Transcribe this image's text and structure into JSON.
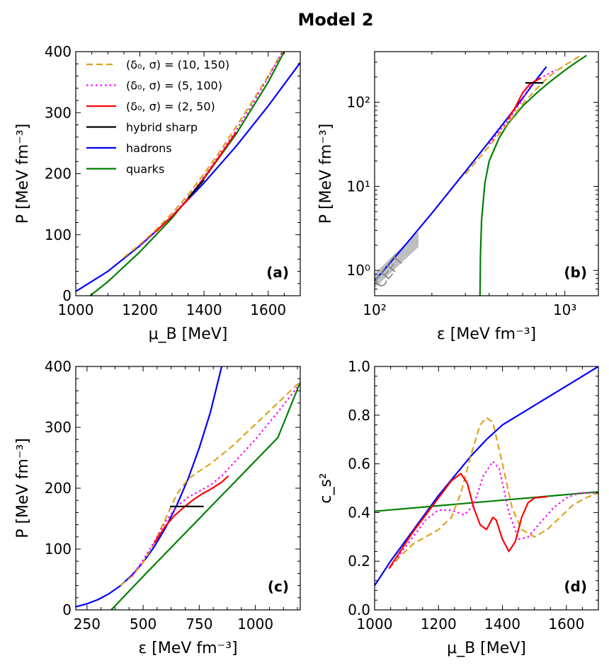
{
  "title": "Model 2",
  "colors": {
    "d10": "#DAA520",
    "d5": "#FF00FF",
    "d2": "#FF0000",
    "hybrid": "#000000",
    "hadrons": "#0000FF",
    "quarks": "#008000",
    "cetf": "#BFBFBF"
  },
  "legend": [
    {
      "key": "d10",
      "label": "(δ₀, σ) = (10, 150)",
      "style": "dashed"
    },
    {
      "key": "d5",
      "label": "(δ₀, σ) = (5, 100)",
      "style": "dotted"
    },
    {
      "key": "d2",
      "label": "(δ₀, σ) = (2, 50)",
      "style": "solid"
    },
    {
      "key": "hybrid",
      "label": "hybrid sharp",
      "style": "solid"
    },
    {
      "key": "hadrons",
      "label": "hadrons",
      "style": "solid"
    },
    {
      "key": "quarks",
      "label": "quarks",
      "style": "solid"
    }
  ],
  "chart_data": [
    {
      "id": "a",
      "type": "line",
      "tag": "(a)",
      "xlabel": "μ_B [MeV]",
      "ylabel": "P [MeV fm⁻³]",
      "xlim": [
        1000,
        1700
      ],
      "ylim": [
        0,
        400
      ],
      "xticks": [
        1000,
        1200,
        1400,
        1600
      ],
      "yticks": [
        0,
        100,
        200,
        300,
        400
      ],
      "series": [
        {
          "name": "hadrons",
          "key": "hadrons",
          "x": [
            1000,
            1100,
            1200,
            1300,
            1400,
            1500,
            1600,
            1700
          ],
          "y": [
            7,
            40,
            82,
            130,
            185,
            245,
            311,
            382
          ]
        },
        {
          "name": "quarks",
          "key": "quarks",
          "x": [
            1045,
            1100,
            1200,
            1300,
            1400,
            1500,
            1600,
            1660
          ],
          "y": [
            0,
            23,
            72,
            127,
            192,
            265,
            350,
            410
          ]
        },
        {
          "name": "(10,150)",
          "key": "d10",
          "x": [
            1150,
            1200,
            1250,
            1300,
            1350,
            1400,
            1450,
            1500,
            1550,
            1600,
            1650
          ],
          "y": [
            63,
            84,
            108,
            135,
            165,
            200,
            237,
            277,
            318,
            360,
            405
          ]
        },
        {
          "name": "(5,100)",
          "key": "d5",
          "x": [
            1200,
            1250,
            1300,
            1350,
            1400,
            1450,
            1500,
            1550,
            1600,
            1650
          ],
          "y": [
            82,
            105,
            131,
            160,
            195,
            232,
            271,
            313,
            358,
            405
          ]
        },
        {
          "name": "(2,50)",
          "key": "d2",
          "x": [
            1250,
            1300,
            1350,
            1400,
            1450,
            1500
          ],
          "y": [
            105,
            130,
            158,
            193,
            230,
            268
          ]
        },
        {
          "name": "hybrid",
          "key": "hybrid",
          "x": [
            1350,
            1400
          ],
          "y": [
            160,
            190
          ]
        }
      ]
    },
    {
      "id": "b",
      "type": "line",
      "tag": "(b)",
      "xscale": "log",
      "yscale": "log",
      "xlabel": "ε [MeV fm⁻³]",
      "ylabel": "P [MeV fm⁻³]",
      "xlim": [
        100,
        1500
      ],
      "ylim": [
        0.5,
        400
      ],
      "xticks": [
        100,
        1000
      ],
      "xticklabels": [
        "10²",
        "10³"
      ],
      "yticks": [
        1,
        10,
        100
      ],
      "yticklabels": [
        "10⁰",
        "10¹",
        "10²"
      ],
      "annotation": "CEFT",
      "ceft_band": {
        "x": [
          100,
          170
        ],
        "lower": [
          0.62,
          1.9
        ],
        "upper": [
          0.92,
          2.9
        ]
      },
      "series": [
        {
          "name": "hadrons",
          "key": "hadrons",
          "x": [
            100,
            150,
            200,
            300,
            400,
            500,
            600,
            700,
            800
          ],
          "y": [
            0.75,
            2.2,
            4.8,
            15,
            34,
            65,
            112,
            180,
            265
          ]
        },
        {
          "name": "quarks",
          "key": "quarks",
          "x": [
            358,
            360,
            365,
            380,
            400,
            450,
            500,
            600,
            700,
            800,
            900,
            1000,
            1100,
            1200,
            1300
          ],
          "y": [
            0.5,
            1.5,
            4,
            11,
            20,
            37,
            55,
            90,
            125,
            162,
            200,
            240,
            280,
            320,
            360
          ]
        },
        {
          "name": "(10,150)",
          "key": "d10",
          "x": [
            300,
            400,
            500,
            600,
            700,
            800,
            900,
            1000,
            1100,
            1200
          ],
          "y": [
            14,
            30,
            56,
            95,
            140,
            190,
            235,
            275,
            315,
            355
          ]
        },
        {
          "name": "(5,100)",
          "key": "d5",
          "x": [
            400,
            500,
            600,
            650,
            700,
            800,
            900
          ],
          "y": [
            32,
            60,
            108,
            150,
            178,
            212,
            245
          ]
        },
        {
          "name": "(2,50)",
          "key": "d2",
          "x": [
            500,
            550,
            600,
            650,
            700,
            750
          ],
          "y": [
            62,
            88,
            130,
            162,
            180,
            195
          ]
        },
        {
          "name": "hybrid",
          "key": "hybrid",
          "x": [
            620,
            770
          ],
          "y": [
            170,
            170
          ]
        }
      ]
    },
    {
      "id": "c",
      "type": "line",
      "tag": "(c)",
      "xlabel": "ε [MeV fm⁻³]",
      "ylabel": "P [MeV fm⁻³]",
      "xlim": [
        200,
        1200
      ],
      "ylim": [
        0,
        400
      ],
      "xticks": [
        250,
        500,
        750,
        1000
      ],
      "yticks": [
        0,
        100,
        200,
        300,
        400
      ],
      "series": [
        {
          "name": "hadrons",
          "key": "hadrons",
          "x": [
            200,
            250,
            300,
            350,
            400,
            450,
            500,
            550,
            600,
            650,
            700,
            750,
            800,
            850
          ],
          "y": [
            5,
            10,
            17,
            27,
            40,
            57,
            78,
            104,
            135,
            172,
            215,
            266,
            325,
            400
          ]
        },
        {
          "name": "quarks",
          "key": "quarks",
          "x": [
            358,
            500,
            600,
            700,
            800,
            900,
            1000,
            1100,
            1200
          ],
          "y": [
            0,
            55,
            93,
            131,
            169,
            207,
            245,
            283,
            374
          ]
        },
        {
          "name": "(10,150)",
          "key": "d10",
          "x": [
            400,
            450,
            500,
            550,
            600,
            650,
            700,
            750,
            800,
            900,
            1000,
            1100,
            1200
          ],
          "y": [
            40,
            55,
            78,
            110,
            150,
            190,
            215,
            228,
            240,
            270,
            305,
            340,
            375
          ]
        },
        {
          "name": "(5,100)",
          "key": "d5",
          "x": [
            450,
            500,
            550,
            600,
            650,
            700,
            750,
            800,
            850,
            900,
            1000,
            1100,
            1200
          ],
          "y": [
            55,
            82,
            112,
            145,
            170,
            185,
            195,
            205,
            220,
            240,
            280,
            325,
            372
          ]
        },
        {
          "name": "(2,50)",
          "key": "d2",
          "x": [
            550,
            600,
            640,
            680,
            720,
            760,
            800,
            850,
            880
          ],
          "y": [
            110,
            138,
            155,
            168,
            180,
            190,
            198,
            210,
            220
          ]
        },
        {
          "name": "hybrid",
          "key": "hybrid",
          "x": [
            620,
            770
          ],
          "y": [
            170,
            170
          ]
        }
      ]
    },
    {
      "id": "d",
      "type": "line",
      "tag": "(d)",
      "xlabel": "μ_B [MeV]",
      "ylabel": "c_s²",
      "xlim": [
        1000,
        1700
      ],
      "ylim": [
        0.0,
        1.0
      ],
      "xticks": [
        1000,
        1200,
        1400,
        1600
      ],
      "yticks": [
        0.0,
        0.2,
        0.4,
        0.6,
        0.8,
        1.0
      ],
      "series": [
        {
          "name": "hadrons",
          "key": "hadrons",
          "x": [
            1000,
            1050,
            1100,
            1150,
            1200,
            1250,
            1300,
            1350,
            1400,
            1450,
            1500,
            1550,
            1600,
            1650,
            1700
          ],
          "y": [
            0.1,
            0.2,
            0.29,
            0.38,
            0.47,
            0.55,
            0.63,
            0.7,
            0.76,
            0.8,
            0.84,
            0.88,
            0.92,
            0.96,
            1.0
          ]
        },
        {
          "name": "quarks",
          "key": "quarks",
          "x": [
            1000,
            1700
          ],
          "y": [
            0.405,
            0.485
          ]
        },
        {
          "name": "(10,150)",
          "key": "d10",
          "x": [
            1045,
            1080,
            1120,
            1160,
            1200,
            1240,
            1270,
            1300,
            1330,
            1350,
            1370,
            1400,
            1430,
            1460,
            1500,
            1540,
            1580,
            1620,
            1660,
            1700
          ],
          "y": [
            0.17,
            0.22,
            0.27,
            0.3,
            0.33,
            0.38,
            0.48,
            0.63,
            0.76,
            0.79,
            0.77,
            0.6,
            0.42,
            0.33,
            0.3,
            0.33,
            0.38,
            0.43,
            0.46,
            0.48
          ]
        },
        {
          "name": "(5,100)",
          "key": "d5",
          "x": [
            1045,
            1080,
            1120,
            1160,
            1200,
            1240,
            1280,
            1310,
            1340,
            1370,
            1390,
            1420,
            1450,
            1480,
            1520,
            1560,
            1600,
            1640,
            1680,
            1700
          ],
          "y": [
            0.17,
            0.23,
            0.3,
            0.37,
            0.41,
            0.41,
            0.39,
            0.43,
            0.55,
            0.61,
            0.58,
            0.4,
            0.29,
            0.3,
            0.36,
            0.42,
            0.46,
            0.48,
            0.48,
            0.48
          ]
        },
        {
          "name": "(2,50)",
          "key": "d2",
          "x": [
            1045,
            1080,
            1120,
            1160,
            1200,
            1240,
            1270,
            1290,
            1310,
            1330,
            1350,
            1370,
            1380,
            1400,
            1420,
            1440,
            1460,
            1480,
            1500,
            1540
          ],
          "y": [
            0.17,
            0.24,
            0.32,
            0.39,
            0.46,
            0.53,
            0.56,
            0.52,
            0.42,
            0.35,
            0.33,
            0.38,
            0.37,
            0.29,
            0.24,
            0.28,
            0.38,
            0.44,
            0.46,
            0.465
          ]
        }
      ]
    }
  ]
}
